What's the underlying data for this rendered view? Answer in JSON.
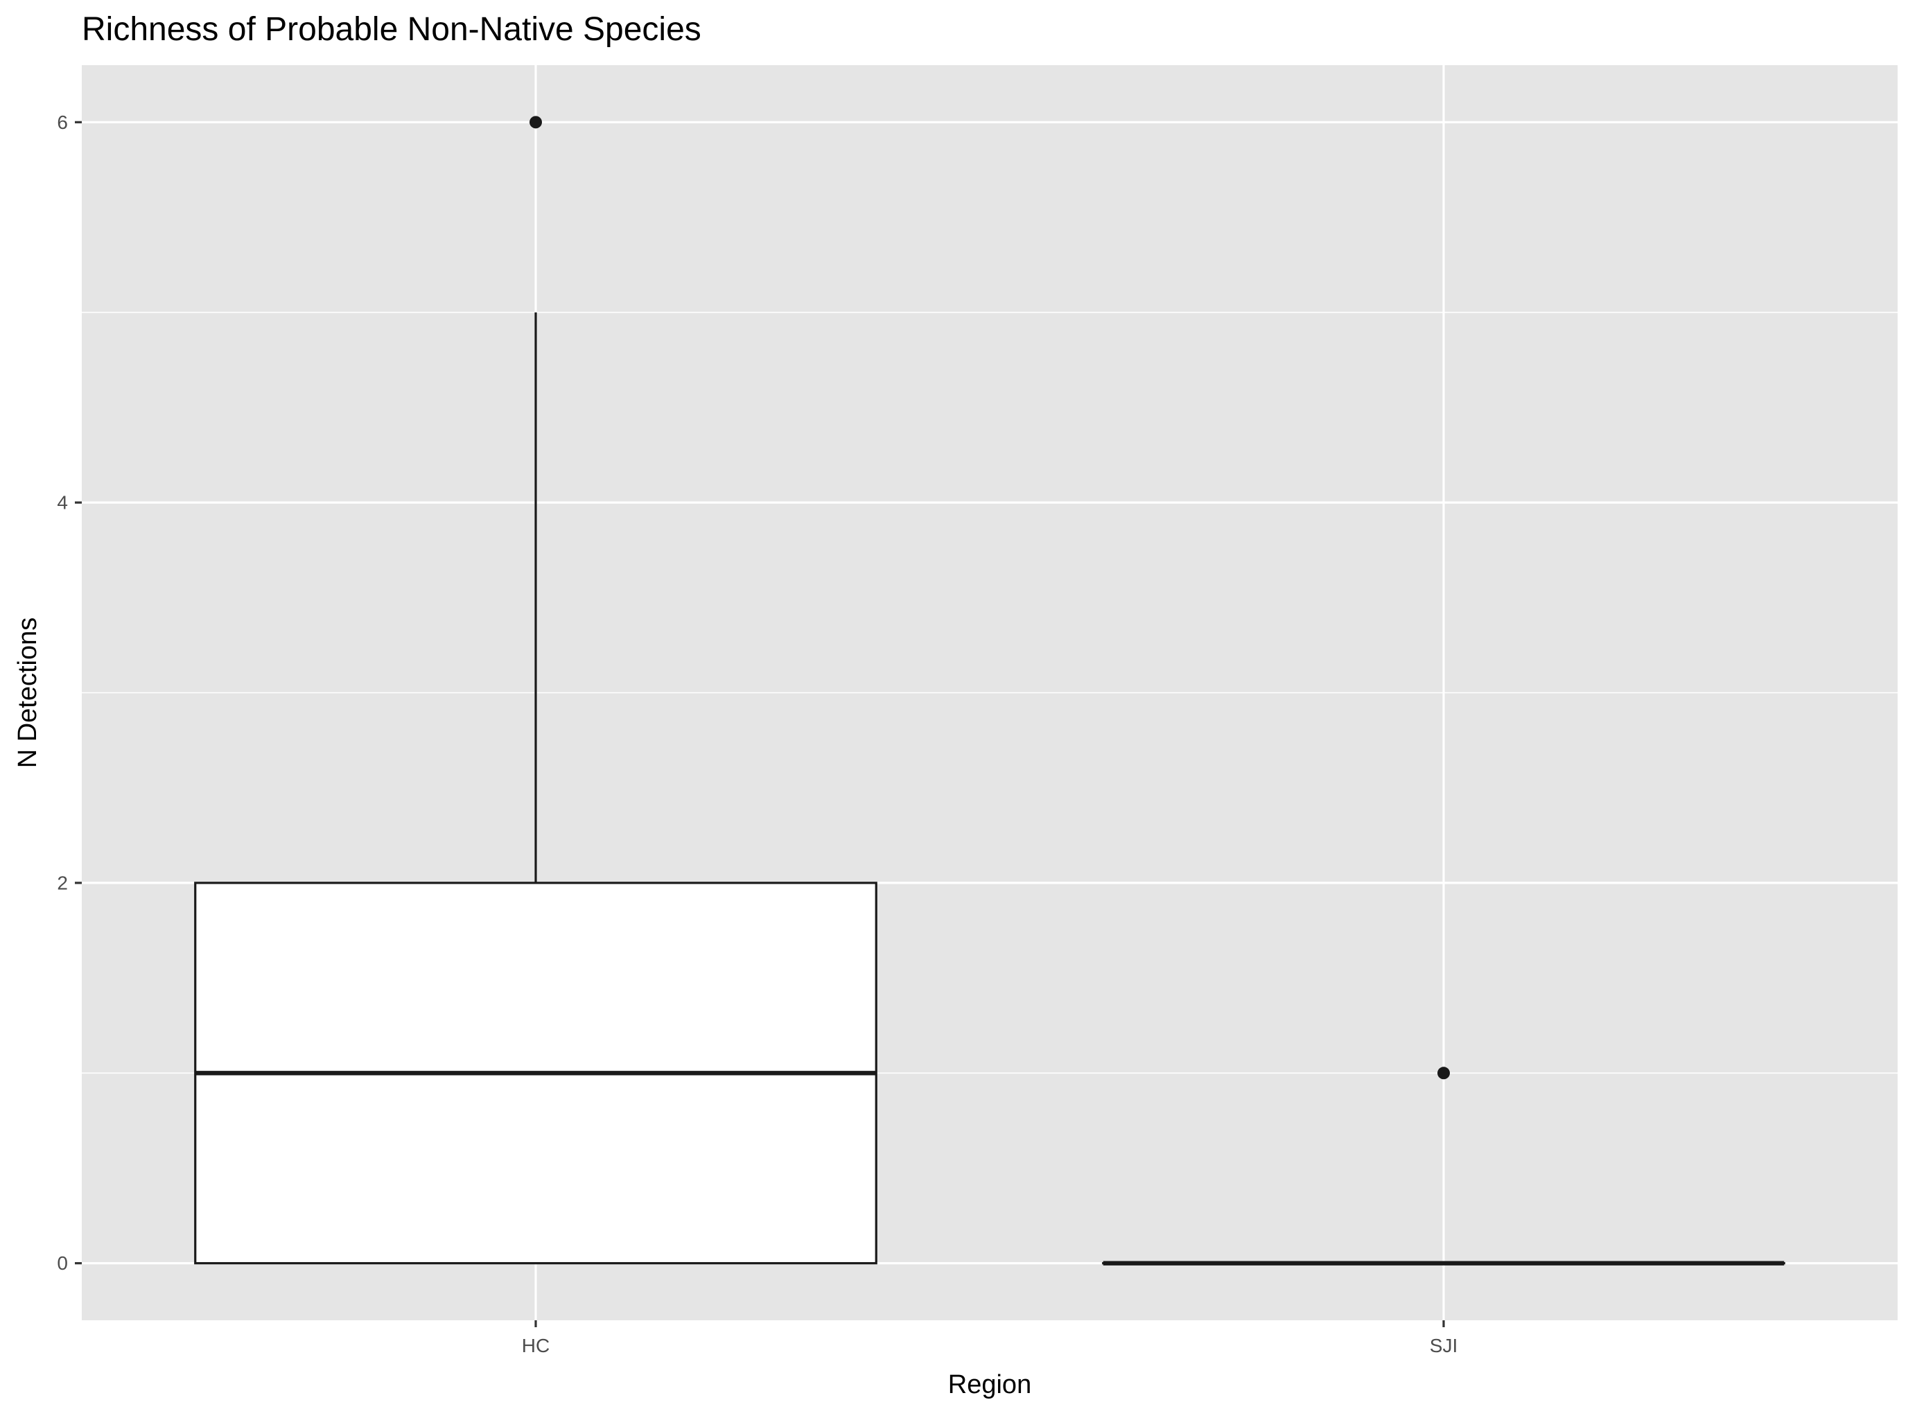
{
  "chart_data": {
    "type": "boxplot",
    "title": "Richness of Probable Non-Native Species",
    "xlabel": "Region",
    "ylabel": "N Detections",
    "categories": [
      "HC",
      "SJI"
    ],
    "yticks": [
      0,
      2,
      4,
      6
    ],
    "ylim": [
      -0.3,
      6.3
    ],
    "grid": true,
    "boxes": [
      {
        "category": "HC",
        "min": 0,
        "q1": 0,
        "median": 1,
        "q3": 2,
        "max": 5,
        "outliers": [
          6
        ]
      },
      {
        "category": "SJI",
        "min": 0,
        "q1": 0,
        "median": 0,
        "q3": 0,
        "max": 0,
        "outliers": [
          1
        ]
      }
    ],
    "colors": {
      "panel_background": "#e5e5e5",
      "grid": "#ffffff",
      "box_fill": "#ffffff",
      "box_line": "#1a1a1a",
      "text": "#000000",
      "tick_label": "#4d4d4d"
    }
  }
}
